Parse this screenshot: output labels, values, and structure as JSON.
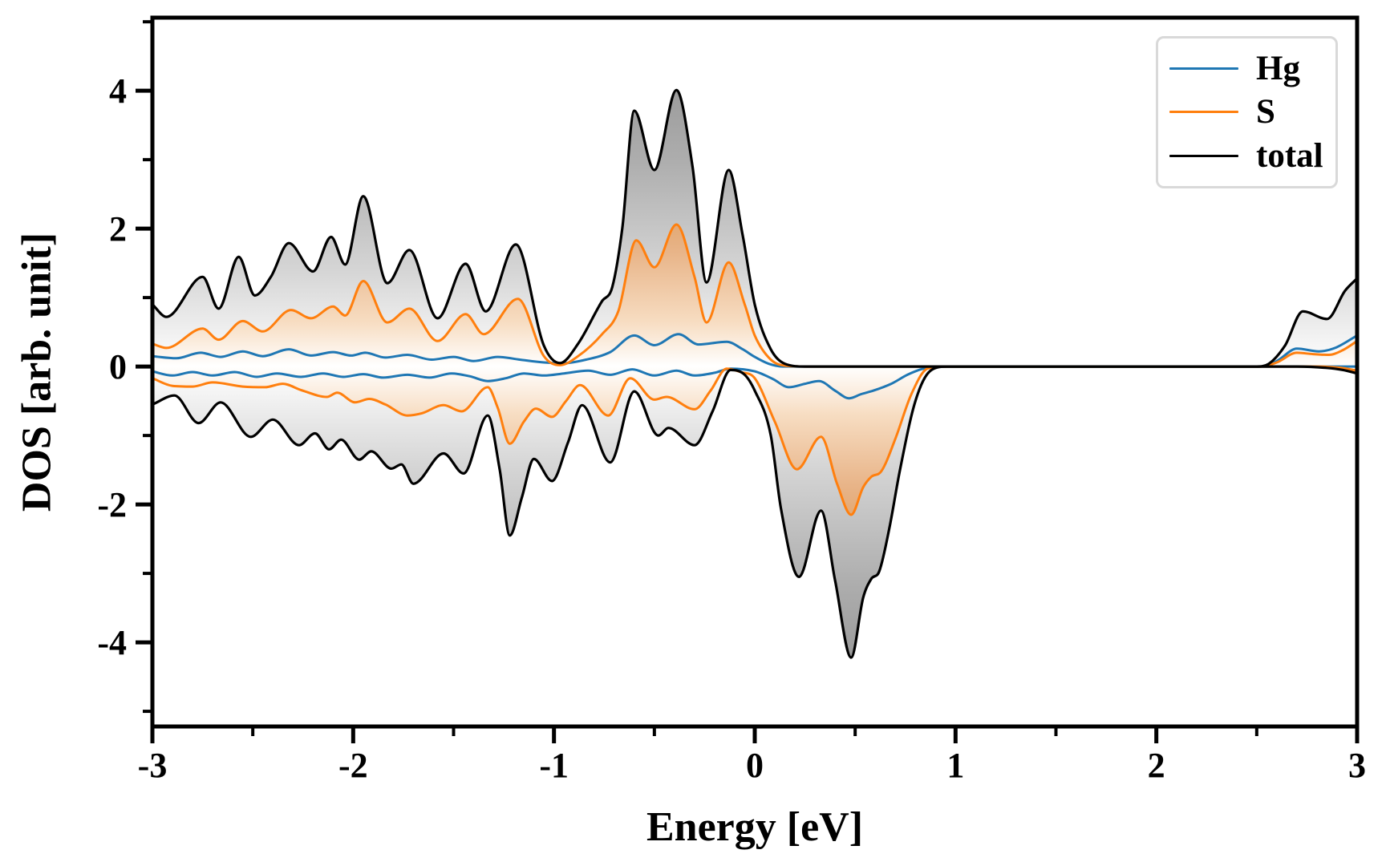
{
  "chart_data": {
    "type": "area-line",
    "title": "",
    "xlabel": "Energy [eV]",
    "ylabel": "DOS [arb. unit]",
    "xlim": [
      -3,
      3
    ],
    "ylim": [
      -5.22,
      5.06
    ],
    "grid": false,
    "legend_position": "upper right",
    "legend_entries": [
      "Hg",
      "S",
      "total"
    ],
    "x_ticks": {
      "major": [
        {
          "v": -3,
          "label": "-3"
        },
        {
          "v": -2,
          "label": "-2"
        },
        {
          "v": -1,
          "label": "-1"
        },
        {
          "v": 0,
          "label": "0"
        },
        {
          "v": 1,
          "label": "1"
        },
        {
          "v": 2,
          "label": "2"
        },
        {
          "v": 3,
          "label": "3"
        }
      ],
      "minor": [
        -2.5,
        -1.5,
        -0.5,
        0.5,
        1.5,
        2.5
      ]
    },
    "y_ticks": {
      "major": [
        {
          "v": 4,
          "label": "4"
        },
        {
          "v": 2,
          "label": "2"
        },
        {
          "v": 0,
          "label": "0"
        },
        {
          "v": -2,
          "label": "-2"
        },
        {
          "v": -4,
          "label": "-4"
        }
      ],
      "minor": [
        5,
        3,
        1,
        -1,
        -3,
        -5
      ]
    },
    "fill_gradients": {
      "total": [
        [
          0,
          "#8a8a8a"
        ],
        [
          0.2,
          "#adadad"
        ],
        [
          0.36,
          "#d6d6d6"
        ],
        [
          0.492,
          "#ffffff"
        ],
        [
          0.63,
          "#d6d6d6"
        ],
        [
          0.8,
          "#adadad"
        ],
        [
          1,
          "#8a8a8a"
        ]
      ],
      "S": [
        [
          0,
          "#c06a1a"
        ],
        [
          0.18,
          "#d2893f"
        ],
        [
          0.33,
          "#e8b488"
        ],
        [
          0.43,
          "#f7ddc2"
        ],
        [
          0.492,
          "#ffffff"
        ],
        [
          0.56,
          "#f7ddc2"
        ],
        [
          0.66,
          "#e8b488"
        ],
        [
          0.82,
          "#d2893f"
        ],
        [
          1,
          "#c06a1a"
        ]
      ]
    },
    "series": [
      {
        "name": "Hg",
        "color": "#1f77b4",
        "line_width": 3,
        "fill": null,
        "spin_up": [
          [
            -3.0,
            0.15
          ],
          [
            -2.88,
            0.12
          ],
          [
            -2.76,
            0.2
          ],
          [
            -2.66,
            0.14
          ],
          [
            -2.55,
            0.22
          ],
          [
            -2.45,
            0.15
          ],
          [
            -2.32,
            0.25
          ],
          [
            -2.21,
            0.16
          ],
          [
            -2.1,
            0.21
          ],
          [
            -2.01,
            0.16
          ],
          [
            -1.94,
            0.2
          ],
          [
            -1.84,
            0.13
          ],
          [
            -1.73,
            0.17
          ],
          [
            -1.61,
            0.1
          ],
          [
            -1.5,
            0.14
          ],
          [
            -1.4,
            0.08
          ],
          [
            -1.28,
            0.14
          ],
          [
            -1.17,
            0.1
          ],
          [
            -1.05,
            0.06
          ],
          [
            -0.95,
            0.05
          ],
          [
            -0.84,
            0.1
          ],
          [
            -0.72,
            0.21
          ],
          [
            -0.6,
            0.45
          ],
          [
            -0.5,
            0.31
          ],
          [
            -0.38,
            0.47
          ],
          [
            -0.28,
            0.32
          ],
          [
            -0.14,
            0.36
          ],
          [
            -0.06,
            0.25
          ],
          [
            0.0,
            0.14
          ],
          [
            0.07,
            0.04
          ],
          [
            0.14,
            0.0
          ],
          [
            0.8,
            0
          ],
          [
            1.6,
            0
          ],
          [
            2.3,
            0
          ],
          [
            2.52,
            0.0
          ],
          [
            2.6,
            0.08
          ],
          [
            2.7,
            0.26
          ],
          [
            2.81,
            0.22
          ],
          [
            2.89,
            0.27
          ],
          [
            3.0,
            0.45
          ]
        ],
        "spin_down": [
          [
            -3.0,
            -0.07
          ],
          [
            -2.9,
            -0.13
          ],
          [
            -2.8,
            -0.08
          ],
          [
            -2.7,
            -0.13
          ],
          [
            -2.59,
            -0.08
          ],
          [
            -2.48,
            -0.15
          ],
          [
            -2.38,
            -0.1
          ],
          [
            -2.26,
            -0.15
          ],
          [
            -2.15,
            -0.1
          ],
          [
            -2.05,
            -0.15
          ],
          [
            -1.95,
            -0.11
          ],
          [
            -1.85,
            -0.16
          ],
          [
            -1.73,
            -0.12
          ],
          [
            -1.62,
            -0.16
          ],
          [
            -1.51,
            -0.1
          ],
          [
            -1.42,
            -0.14
          ],
          [
            -1.33,
            -0.21
          ],
          [
            -1.24,
            -0.17
          ],
          [
            -1.15,
            -0.1
          ],
          [
            -1.05,
            -0.13
          ],
          [
            -0.95,
            -0.1
          ],
          [
            -0.83,
            -0.06
          ],
          [
            -0.72,
            -0.12
          ],
          [
            -0.61,
            -0.04
          ],
          [
            -0.5,
            -0.13
          ],
          [
            -0.39,
            -0.06
          ],
          [
            -0.3,
            -0.13
          ],
          [
            -0.2,
            -0.09
          ],
          [
            -0.12,
            -0.03
          ],
          [
            0.0,
            -0.07
          ],
          [
            0.09,
            -0.18
          ],
          [
            0.17,
            -0.3
          ],
          [
            0.25,
            -0.25
          ],
          [
            0.32,
            -0.21
          ],
          [
            0.4,
            -0.35
          ],
          [
            0.47,
            -0.46
          ],
          [
            0.53,
            -0.4
          ],
          [
            0.59,
            -0.35
          ],
          [
            0.68,
            -0.25
          ],
          [
            0.76,
            -0.12
          ],
          [
            0.84,
            -0.03
          ],
          [
            0.92,
            0.0
          ],
          [
            1.6,
            0
          ],
          [
            2.4,
            0
          ],
          [
            3.0,
            0.0
          ]
        ]
      },
      {
        "name": "S",
        "color": "#ff7f0e",
        "line_width": 3,
        "fill": "S",
        "spin_up": [
          [
            -3.0,
            0.33
          ],
          [
            -2.93,
            0.27
          ],
          [
            -2.75,
            0.55
          ],
          [
            -2.67,
            0.39
          ],
          [
            -2.55,
            0.66
          ],
          [
            -2.45,
            0.51
          ],
          [
            -2.31,
            0.82
          ],
          [
            -2.21,
            0.7
          ],
          [
            -2.1,
            0.87
          ],
          [
            -2.04,
            0.74
          ],
          [
            -1.95,
            1.24
          ],
          [
            -1.83,
            0.64
          ],
          [
            -1.72,
            0.84
          ],
          [
            -1.58,
            0.37
          ],
          [
            -1.44,
            0.76
          ],
          [
            -1.35,
            0.47
          ],
          [
            -1.18,
            0.98
          ],
          [
            -1.05,
            0.15
          ],
          [
            -0.97,
            0.02
          ],
          [
            -0.88,
            0.15
          ],
          [
            -0.76,
            0.47
          ],
          [
            -0.68,
            0.8
          ],
          [
            -0.59,
            1.83
          ],
          [
            -0.5,
            1.44
          ],
          [
            -0.39,
            2.06
          ],
          [
            -0.3,
            1.3
          ],
          [
            -0.24,
            0.64
          ],
          [
            -0.13,
            1.51
          ],
          [
            -0.05,
            0.9
          ],
          [
            0.0,
            0.45
          ],
          [
            0.08,
            0.1
          ],
          [
            0.16,
            0.01
          ],
          [
            0.26,
            0.0
          ],
          [
            0.8,
            0
          ],
          [
            1.5,
            0
          ],
          [
            2.2,
            0
          ],
          [
            2.52,
            0.0
          ],
          [
            2.6,
            0.06
          ],
          [
            2.7,
            0.2
          ],
          [
            2.78,
            0.18
          ],
          [
            2.86,
            0.17
          ],
          [
            2.93,
            0.24
          ],
          [
            3.0,
            0.37
          ]
        ],
        "spin_down": [
          [
            -3.0,
            -0.17
          ],
          [
            -2.9,
            -0.28
          ],
          [
            -2.8,
            -0.29
          ],
          [
            -2.7,
            -0.23
          ],
          [
            -2.55,
            -0.29
          ],
          [
            -2.44,
            -0.3
          ],
          [
            -2.35,
            -0.25
          ],
          [
            -2.26,
            -0.34
          ],
          [
            -2.13,
            -0.44
          ],
          [
            -2.08,
            -0.38
          ],
          [
            -1.99,
            -0.52
          ],
          [
            -1.92,
            -0.47
          ],
          [
            -1.84,
            -0.55
          ],
          [
            -1.73,
            -0.71
          ],
          [
            -1.66,
            -0.68
          ],
          [
            -1.55,
            -0.56
          ],
          [
            -1.46,
            -0.65
          ],
          [
            -1.33,
            -0.3
          ],
          [
            -1.28,
            -0.6
          ],
          [
            -1.22,
            -1.12
          ],
          [
            -1.15,
            -0.8
          ],
          [
            -1.09,
            -0.61
          ],
          [
            -1.01,
            -0.73
          ],
          [
            -0.94,
            -0.5
          ],
          [
            -0.87,
            -0.27
          ],
          [
            -0.73,
            -0.71
          ],
          [
            -0.62,
            -0.17
          ],
          [
            -0.5,
            -0.48
          ],
          [
            -0.44,
            -0.44
          ],
          [
            -0.3,
            -0.62
          ],
          [
            -0.22,
            -0.35
          ],
          [
            -0.14,
            -0.03
          ],
          [
            -0.07,
            -0.08
          ],
          [
            0.0,
            -0.17
          ],
          [
            0.1,
            -0.8
          ],
          [
            0.21,
            -1.49
          ],
          [
            0.33,
            -1.02
          ],
          [
            0.41,
            -1.7
          ],
          [
            0.48,
            -2.15
          ],
          [
            0.54,
            -1.75
          ],
          [
            0.58,
            -1.6
          ],
          [
            0.63,
            -1.52
          ],
          [
            0.7,
            -1.05
          ],
          [
            0.78,
            -0.4
          ],
          [
            0.86,
            -0.03
          ],
          [
            0.94,
            0.0
          ],
          [
            1.6,
            0
          ],
          [
            2.4,
            0
          ],
          [
            2.8,
            0.0
          ],
          [
            2.92,
            -0.02
          ],
          [
            3.0,
            -0.06
          ]
        ]
      },
      {
        "name": "total",
        "color": "#000000",
        "line_width": 3.2,
        "fill": "total",
        "spin_up": [
          [
            -3.0,
            0.9
          ],
          [
            -2.93,
            0.72
          ],
          [
            -2.75,
            1.3
          ],
          [
            -2.67,
            0.84
          ],
          [
            -2.57,
            1.59
          ],
          [
            -2.49,
            1.03
          ],
          [
            -2.41,
            1.3
          ],
          [
            -2.32,
            1.79
          ],
          [
            -2.2,
            1.38
          ],
          [
            -2.11,
            1.88
          ],
          [
            -2.04,
            1.48
          ],
          [
            -1.95,
            2.47
          ],
          [
            -1.83,
            1.21
          ],
          [
            -1.72,
            1.69
          ],
          [
            -1.58,
            0.7
          ],
          [
            -1.44,
            1.49
          ],
          [
            -1.34,
            0.8
          ],
          [
            -1.19,
            1.77
          ],
          [
            -1.05,
            0.3
          ],
          [
            -0.97,
            0.05
          ],
          [
            -0.88,
            0.33
          ],
          [
            -0.76,
            0.95
          ],
          [
            -0.71,
            1.15
          ],
          [
            -0.66,
            2.0
          ],
          [
            -0.6,
            3.71
          ],
          [
            -0.5,
            2.85
          ],
          [
            -0.39,
            4.01
          ],
          [
            -0.31,
            2.9
          ],
          [
            -0.24,
            1.22
          ],
          [
            -0.13,
            2.85
          ],
          [
            -0.06,
            1.9
          ],
          [
            0.0,
            0.9
          ],
          [
            0.08,
            0.25
          ],
          [
            0.15,
            0.04
          ],
          [
            0.25,
            0.0
          ],
          [
            0.6,
            0
          ],
          [
            1.2,
            0
          ],
          [
            1.8,
            0
          ],
          [
            2.4,
            0
          ],
          [
            2.5,
            0.0
          ],
          [
            2.56,
            0.04
          ],
          [
            2.64,
            0.3
          ],
          [
            2.73,
            0.8
          ],
          [
            2.85,
            0.69
          ],
          [
            2.94,
            1.1
          ],
          [
            3.0,
            1.28
          ]
        ],
        "spin_down": [
          [
            -3.0,
            -0.55
          ],
          [
            -2.89,
            -0.42
          ],
          [
            -2.77,
            -0.82
          ],
          [
            -2.66,
            -0.52
          ],
          [
            -2.51,
            -1.02
          ],
          [
            -2.4,
            -0.77
          ],
          [
            -2.27,
            -1.14
          ],
          [
            -2.19,
            -0.97
          ],
          [
            -2.12,
            -1.2
          ],
          [
            -2.06,
            -1.06
          ],
          [
            -1.97,
            -1.35
          ],
          [
            -1.91,
            -1.23
          ],
          [
            -1.81,
            -1.48
          ],
          [
            -1.76,
            -1.42
          ],
          [
            -1.7,
            -1.7
          ],
          [
            -1.55,
            -1.26
          ],
          [
            -1.45,
            -1.55
          ],
          [
            -1.33,
            -0.71
          ],
          [
            -1.27,
            -1.5
          ],
          [
            -1.22,
            -2.45
          ],
          [
            -1.16,
            -1.9
          ],
          [
            -1.1,
            -1.34
          ],
          [
            -1.01,
            -1.66
          ],
          [
            -0.93,
            -1.1
          ],
          [
            -0.86,
            -0.56
          ],
          [
            -0.72,
            -1.39
          ],
          [
            -0.6,
            -0.36
          ],
          [
            -0.48,
            -1.0
          ],
          [
            -0.43,
            -0.89
          ],
          [
            -0.3,
            -1.14
          ],
          [
            -0.21,
            -0.65
          ],
          [
            -0.12,
            -0.05
          ],
          [
            -0.05,
            -0.12
          ],
          [
            0.0,
            -0.35
          ],
          [
            0.08,
            -1.0
          ],
          [
            0.13,
            -2.05
          ],
          [
            0.22,
            -3.05
          ],
          [
            0.33,
            -2.09
          ],
          [
            0.4,
            -3.1
          ],
          [
            0.48,
            -4.22
          ],
          [
            0.54,
            -3.35
          ],
          [
            0.58,
            -3.08
          ],
          [
            0.62,
            -2.97
          ],
          [
            0.67,
            -2.35
          ],
          [
            0.72,
            -1.55
          ],
          [
            0.8,
            -0.5
          ],
          [
            0.88,
            -0.05
          ],
          [
            0.96,
            0.0
          ],
          [
            1.5,
            0
          ],
          [
            2.2,
            0
          ],
          [
            2.7,
            0.0
          ],
          [
            2.85,
            -0.02
          ],
          [
            2.93,
            -0.05
          ],
          [
            3.0,
            -0.1
          ]
        ]
      }
    ]
  }
}
